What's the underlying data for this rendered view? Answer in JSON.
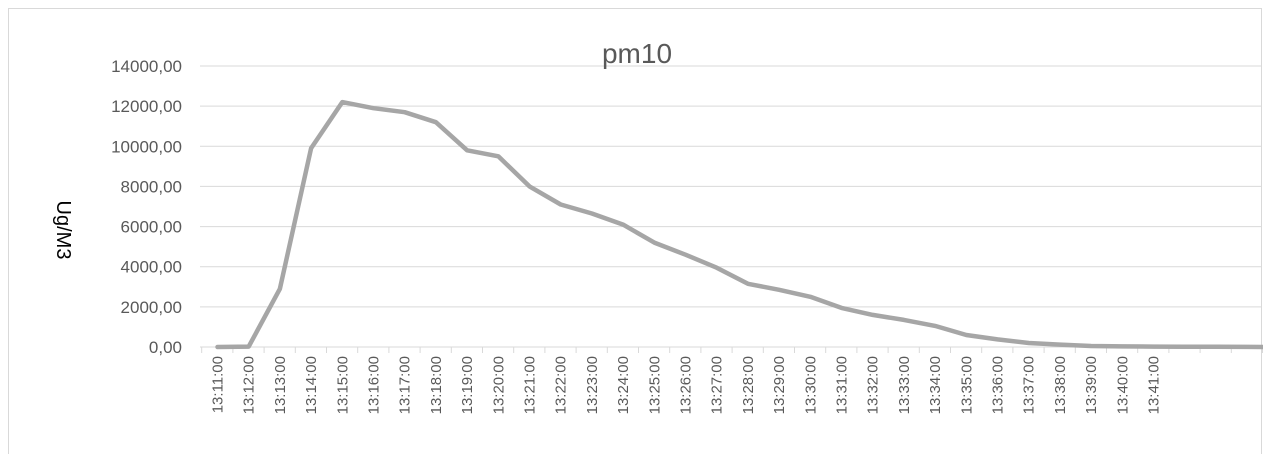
{
  "chart_data": {
    "type": "line",
    "title": "pm10",
    "xlabel": "",
    "ylabel": "Ug/M3",
    "ylim": [
      0,
      14000
    ],
    "yticks": [
      "0,00",
      "2000,00",
      "4000,00",
      "6000,00",
      "8000,00",
      "10000,00",
      "12000,00",
      "14000,00"
    ],
    "x": [
      "13:11:00",
      "13:12:00",
      "13:13:00",
      "13:14:00",
      "13:15:00",
      "13:16:00",
      "13:17:00",
      "13:18:00",
      "13:19:00",
      "13:20:00",
      "13:21:00",
      "13:22:00",
      "13:23:00",
      "13:24:00",
      "13:25:00",
      "13:26:00",
      "13:27:00",
      "13:28:00",
      "13:29:00",
      "13:30:00",
      "13:31:00",
      "13:32:00",
      "13:33:00",
      "13:34:00",
      "13:35:00",
      "13:36:00",
      "13:37:00",
      "13:38:00",
      "13:39:00",
      "13:40:00",
      "13:41:00",
      "",
      "",
      "",
      ""
    ],
    "series": [
      {
        "name": "",
        "color": "#a6a6a6",
        "values": [
          0,
          20,
          2900,
          9900,
          12200,
          11900,
          11700,
          11200,
          9800,
          9500,
          8000,
          7100,
          6650,
          6100,
          5200,
          4600,
          3950,
          3150,
          2850,
          2500,
          1950,
          1600,
          1350,
          1050,
          600,
          380,
          200,
          120,
          50,
          30,
          20,
          15,
          10,
          5,
          0
        ]
      }
    ],
    "grid": true,
    "gridColor": "#d9d9d9",
    "legend": "none"
  }
}
